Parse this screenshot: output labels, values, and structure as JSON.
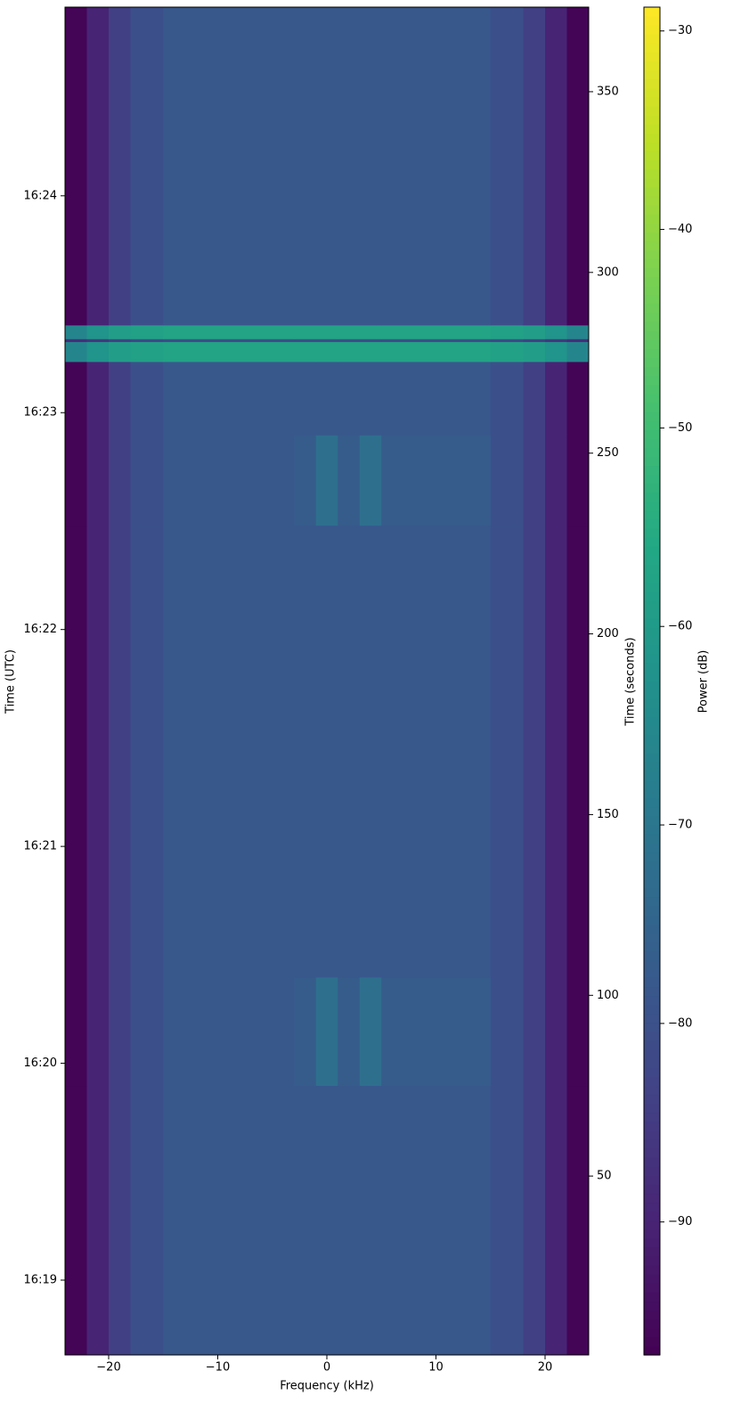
{
  "chart_data": {
    "type": "heatmap",
    "xlabel": "Frequency (kHz)",
    "ylabel": "Time (UTC)",
    "y2label": "Time (seconds)",
    "colorbar_label": "Power (dB)",
    "colormap": "viridis",
    "xlim": [
      -24,
      24
    ],
    "xticks": [
      {
        "value": -20,
        "label": "−20"
      },
      {
        "value": -10,
        "label": "−10"
      },
      0,
      10,
      20
    ],
    "ylim": [
      0.5,
      373.4
    ],
    "yticks": [
      {
        "value": 21.2,
        "label": "16:19"
      },
      {
        "value": 81.2,
        "label": "16:20"
      },
      {
        "value": 141.2,
        "label": "16:21"
      },
      {
        "value": 201.2,
        "label": "16:22"
      },
      {
        "value": 261.2,
        "label": "16:23"
      },
      {
        "value": 321.2,
        "label": "16:24"
      }
    ],
    "y2lim": [
      0.5,
      373.4
    ],
    "y2ticks": [
      50,
      100,
      150,
      200,
      250,
      300,
      350
    ],
    "clim": [
      -96.7,
      -28.8
    ],
    "cticks": [
      {
        "value": -90,
        "label": "−90"
      },
      {
        "value": -80,
        "label": "−80"
      },
      {
        "value": -70,
        "label": "−70"
      },
      {
        "value": -60,
        "label": "−60"
      },
      {
        "value": -50,
        "label": "−50"
      },
      {
        "value": -40,
        "label": "−40"
      },
      {
        "value": -30,
        "label": "−30"
      }
    ],
    "x_edges": [
      -24,
      -22,
      -20,
      -18,
      -15,
      -3,
      -1,
      1,
      3,
      5,
      15,
      18,
      20,
      22,
      24
    ],
    "y_edges": [
      0.5,
      75,
      105,
      230,
      255,
      275.3,
      280.8,
      281.6,
      285.4,
      373.4
    ],
    "values": [
      [
        -96,
        -90,
        -84,
        -80,
        -78,
        -78,
        -78,
        -78,
        -78,
        -78,
        -80,
        -84,
        -90,
        -96
      ],
      [
        -96,
        -90,
        -84,
        -80,
        -78,
        -77,
        -72,
        -77,
        -72,
        -77,
        -80,
        -84,
        -90,
        -96
      ],
      [
        -96,
        -90,
        -84,
        -80,
        -78,
        -78,
        -78,
        -78,
        -78,
        -78,
        -80,
        -84,
        -90,
        -96
      ],
      [
        -96,
        -90,
        -84,
        -80,
        -78,
        -77,
        -72,
        -77,
        -72,
        -77,
        -80,
        -84,
        -90,
        -96
      ],
      [
        -96,
        -90,
        -84,
        -80,
        -78,
        -78,
        -78,
        -78,
        -78,
        -78,
        -80,
        -84,
        -90,
        -96
      ],
      [
        -66,
        -62,
        -59,
        -58,
        -57,
        -57,
        -57,
        -57,
        -57,
        -57,
        -58,
        -59,
        -62,
        -66
      ],
      [
        -88,
        -86,
        -84,
        -82,
        -81,
        -81,
        -81,
        -81,
        -81,
        -81,
        -82,
        -84,
        -86,
        -88
      ],
      [
        -66,
        -62,
        -59,
        -58,
        -57,
        -57,
        -57,
        -57,
        -57,
        -57,
        -58,
        -59,
        -62,
        -66
      ],
      [
        -96,
        -90,
        -84,
        -80,
        -78,
        -78,
        -78,
        -78,
        -78,
        -78,
        -80,
        -84,
        -90,
        -96
      ]
    ]
  }
}
